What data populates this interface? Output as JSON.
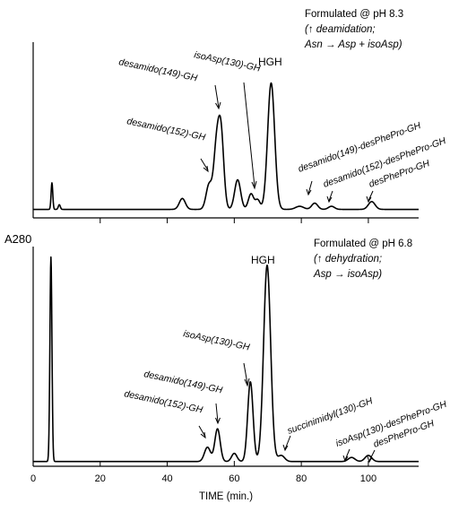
{
  "chart_data": {
    "type": "line",
    "ylabel": "A280",
    "xlabel": "TIME (min.)",
    "xlim": [
      0,
      115
    ],
    "x_ticks": [
      0,
      20,
      40,
      60,
      80,
      100
    ],
    "panels": [
      {
        "id": "top",
        "header": [
          "Formulated @ pH 8.3",
          "(↑ deamidation;",
          "Asn → Asp + isoAsp)"
        ],
        "main_label": "HGH",
        "baseline": 0.02,
        "peaks": [
          {
            "x": 5.6,
            "h": 0.17,
            "w": 0.25
          },
          {
            "x": 7.8,
            "h": 0.03,
            "w": 0.3
          },
          {
            "x": 44.5,
            "h": 0.07,
            "w": 0.9
          },
          {
            "x": 52.5,
            "h": 0.16,
            "w": 0.9
          },
          {
            "x": 54.6,
            "h": 0.34,
            "w": 0.8
          },
          {
            "x": 56.0,
            "h": 0.5,
            "w": 0.85
          },
          {
            "x": 61.0,
            "h": 0.19,
            "w": 0.9
          },
          {
            "x": 65.0,
            "h": 0.1,
            "w": 0.8
          },
          {
            "x": 67.0,
            "h": 0.06,
            "w": 0.7
          },
          {
            "x": 71.0,
            "h": 0.81,
            "w": 1.05
          },
          {
            "x": 79.5,
            "h": 0.02,
            "w": 1.2
          },
          {
            "x": 84.0,
            "h": 0.04,
            "w": 0.9
          },
          {
            "x": 89.0,
            "h": 0.02,
            "w": 0.9
          },
          {
            "x": 101.0,
            "h": 0.05,
            "w": 1.0
          }
        ],
        "annotations": [
          {
            "text": "desamido(149)-GH",
            "x": 55.5
          },
          {
            "text": "isoAsp(130)-GH",
            "x": 66.5
          },
          {
            "text": "desamido(152)-GH",
            "x": 53.0
          },
          {
            "text": "desamido(149)-desPhePro-GH",
            "x": 83.5
          },
          {
            "text": "desamido(152)-desPhePro-GH",
            "x": 89.5
          },
          {
            "text": "desPhePro-GH",
            "x": 101.5
          }
        ]
      },
      {
        "id": "bottom",
        "header": [
          "Formulated @ pH 6.8",
          "(↑ dehydration;",
          "Asp → isoAsp)"
        ],
        "main_label": "HGH",
        "baseline": 0.01,
        "peaks": [
          {
            "x": 5.3,
            "h": 1.0,
            "w": 0.3
          },
          {
            "x": 52.0,
            "h": 0.07,
            "w": 0.9
          },
          {
            "x": 55.0,
            "h": 0.16,
            "w": 0.8
          },
          {
            "x": 60.0,
            "h": 0.04,
            "w": 0.8
          },
          {
            "x": 64.8,
            "h": 0.39,
            "w": 0.8
          },
          {
            "x": 69.8,
            "h": 0.96,
            "w": 1.05
          },
          {
            "x": 74.0,
            "h": 0.03,
            "w": 1.0
          },
          {
            "x": 95.0,
            "h": 0.02,
            "w": 1.0
          },
          {
            "x": 100.0,
            "h": 0.03,
            "w": 1.0
          }
        ],
        "annotations": [
          {
            "text": "isoAsp(130)-GH",
            "x": 64.8
          },
          {
            "text": "desamido(149)-GH",
            "x": 55.0
          },
          {
            "text": "desamido(152)-GH",
            "x": 52.0
          },
          {
            "text": "succinimidyl(130)-GH",
            "x": 76.0
          },
          {
            "text": "isoAsp(130)-desPhePro-GH",
            "x": 95.0
          },
          {
            "text": "desPhePro-GH",
            "x": 100.5
          }
        ]
      }
    ]
  }
}
